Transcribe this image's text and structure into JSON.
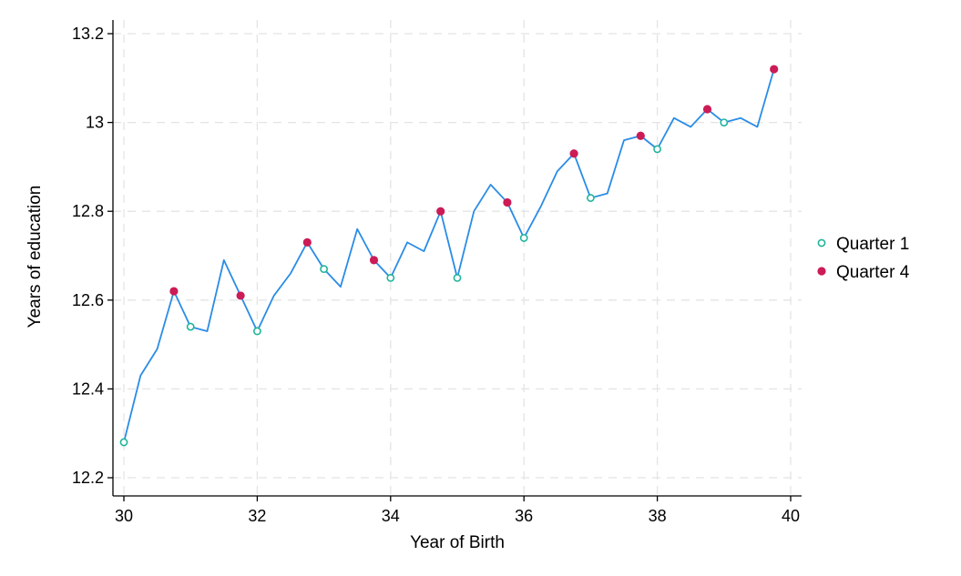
{
  "chart_data": {
    "type": "line",
    "xlabel": "Year of Birth",
    "ylabel": "Years of education",
    "xlim": [
      30,
      40
    ],
    "ylim": [
      12.2,
      13.2
    ],
    "xticks": [
      30,
      32,
      34,
      36,
      38,
      40
    ],
    "xtick_labels": [
      "30",
      "32",
      "34",
      "36",
      "38",
      "40"
    ],
    "yticks": [
      12.2,
      12.4,
      12.6,
      12.8,
      13.0,
      13.2
    ],
    "ytick_labels": [
      "12.2",
      "12.4",
      "12.6",
      "12.8",
      "13",
      "13.2"
    ],
    "grid": true,
    "legend_position": "right",
    "series": [
      {
        "style": "line",
        "color": "#2a8ce6",
        "x": [
          30,
          30.25,
          30.5,
          30.75,
          31,
          31.25,
          31.5,
          31.75,
          32,
          32.25,
          32.5,
          32.75,
          33,
          33.25,
          33.5,
          33.75,
          34,
          34.25,
          34.5,
          34.75,
          35,
          35.25,
          35.5,
          35.75,
          36,
          36.25,
          36.5,
          36.75,
          37,
          37.25,
          37.5,
          37.75,
          38,
          38.25,
          38.5,
          38.75,
          39,
          39.25,
          39.5,
          39.75
        ],
        "y": [
          12.28,
          12.43,
          12.49,
          12.62,
          12.54,
          12.53,
          12.69,
          12.61,
          12.53,
          12.61,
          12.66,
          12.73,
          12.67,
          12.63,
          12.76,
          12.69,
          12.65,
          12.73,
          12.71,
          12.8,
          12.65,
          12.8,
          12.86,
          12.82,
          12.74,
          12.81,
          12.89,
          12.93,
          12.83,
          12.84,
          12.96,
          12.97,
          12.94,
          13.01,
          12.99,
          13.03,
          13.0,
          13.01,
          12.99,
          13.12
        ]
      },
      {
        "name": "Quarter 1",
        "style": "hollow-circle",
        "color": "#1fb59a",
        "x": [
          30,
          31,
          32,
          33,
          34,
          35,
          36,
          37,
          38,
          39
        ],
        "y": [
          12.28,
          12.54,
          12.53,
          12.67,
          12.65,
          12.65,
          12.74,
          12.83,
          12.94,
          13.0
        ]
      },
      {
        "name": "Quarter 4",
        "style": "filled-circle",
        "color": "#cc1b55",
        "x": [
          30.75,
          31.75,
          32.75,
          33.75,
          34.75,
          35.75,
          36.75,
          37.75,
          38.75,
          39.75
        ],
        "y": [
          12.62,
          12.61,
          12.73,
          12.69,
          12.8,
          12.82,
          12.93,
          12.97,
          13.03,
          13.12
        ]
      }
    ]
  }
}
